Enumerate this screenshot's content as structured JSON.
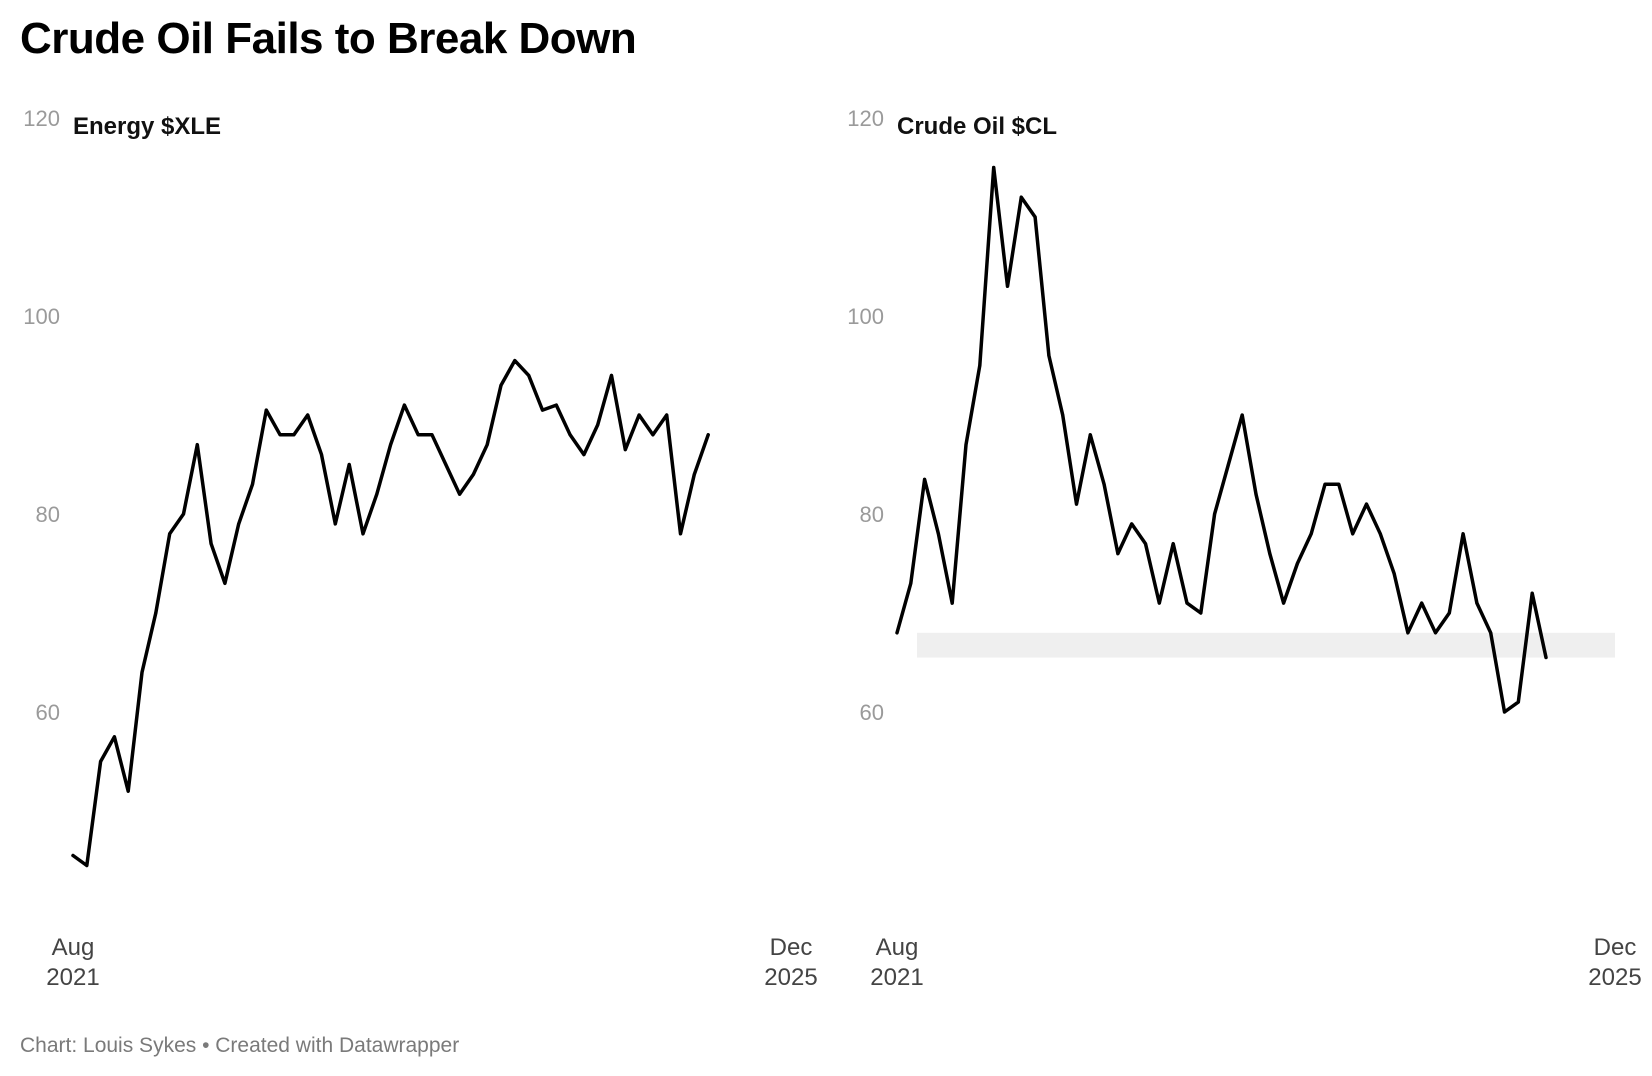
{
  "page": {
    "title": "Crude Oil Fails to Break Down",
    "footer": "Chart: Louis Sykes • Created with Datawrapper"
  },
  "colors": {
    "line": "#000000",
    "band": "#efefef",
    "tick_label": "#9a9a9a",
    "axis_label": "#444444"
  },
  "chart_data": [
    {
      "type": "line",
      "title": "Energy $XLE",
      "xlabel": "",
      "ylabel": "",
      "ylim": [
        40,
        125
      ],
      "y_ticks": [
        {
          "value": 120,
          "label": "120"
        },
        {
          "value": 100,
          "label": "100"
        },
        {
          "value": 80,
          "label": "80"
        },
        {
          "value": 60,
          "label": "60"
        }
      ],
      "x_range": [
        "2021-08",
        "2025-12"
      ],
      "x_ticks": [
        {
          "date": "2021-08",
          "month": "Aug",
          "year": "2021"
        },
        {
          "date": "2025-12",
          "month": "Dec",
          "year": "2025"
        }
      ],
      "grid": false,
      "legend": "none",
      "series": [
        {
          "x": [
            "2021-08",
            "2021-09",
            "2021-10",
            "2021-11",
            "2021-12",
            "2022-01",
            "2022-02",
            "2022-03",
            "2022-04",
            "2022-05",
            "2022-06",
            "2022-07",
            "2022-08",
            "2022-09",
            "2022-10",
            "2022-11",
            "2022-12",
            "2023-01",
            "2023-02",
            "2023-03",
            "2023-04",
            "2023-05",
            "2023-06",
            "2023-07",
            "2023-08",
            "2023-09",
            "2023-10",
            "2023-11",
            "2023-12",
            "2024-01",
            "2024-02",
            "2024-03",
            "2024-04",
            "2024-05",
            "2024-06",
            "2024-07",
            "2024-08",
            "2024-09",
            "2024-10",
            "2024-11",
            "2024-12",
            "2025-01",
            "2025-02",
            "2025-03",
            "2025-04",
            "2025-05",
            "2025-06"
          ],
          "values": [
            45.5,
            44.5,
            55.0,
            57.5,
            52.0,
            64.0,
            70.0,
            78.0,
            80.0,
            87.0,
            77.0,
            73.0,
            79.0,
            83.0,
            90.5,
            88.0,
            88.0,
            90.0,
            86.0,
            79.0,
            85.0,
            78.0,
            82.0,
            87.0,
            91.0,
            88.0,
            88.0,
            85.0,
            82.0,
            84.0,
            87.0,
            93.0,
            95.5,
            94.0,
            90.5,
            91.0,
            88.0,
            86.0,
            89.0,
            94.0,
            86.5,
            90.0,
            88.0,
            90.0,
            78.0,
            84.0,
            88.0
          ]
        }
      ]
    },
    {
      "type": "line",
      "title": "Crude Oil $CL",
      "xlabel": "",
      "ylabel": "",
      "ylim": [
        40,
        125
      ],
      "y_ticks": [
        {
          "value": 120,
          "label": "120"
        },
        {
          "value": 100,
          "label": "100"
        },
        {
          "value": 80,
          "label": "80"
        },
        {
          "value": 60,
          "label": "60"
        }
      ],
      "x_range": [
        "2021-08",
        "2025-12"
      ],
      "x_ticks": [
        {
          "date": "2021-08",
          "month": "Aug",
          "year": "2021"
        },
        {
          "date": "2025-12",
          "month": "Dec",
          "year": "2025"
        }
      ],
      "grid": false,
      "legend": "none",
      "band": {
        "y_low": 65.5,
        "y_high": 68.0
      },
      "series": [
        {
          "x": [
            "2021-08",
            "2021-09",
            "2021-10",
            "2021-11",
            "2021-12",
            "2022-01",
            "2022-02",
            "2022-03",
            "2022-04",
            "2022-05",
            "2022-06",
            "2022-07",
            "2022-08",
            "2022-09",
            "2022-10",
            "2022-11",
            "2022-12",
            "2023-01",
            "2023-02",
            "2023-03",
            "2023-04",
            "2023-05",
            "2023-06",
            "2023-07",
            "2023-08",
            "2023-09",
            "2023-10",
            "2023-11",
            "2023-12",
            "2024-01",
            "2024-02",
            "2024-03",
            "2024-04",
            "2024-05",
            "2024-06",
            "2024-07",
            "2024-08",
            "2024-09",
            "2024-10",
            "2024-11",
            "2024-12",
            "2025-01",
            "2025-02",
            "2025-03",
            "2025-04",
            "2025-05",
            "2025-06",
            "2025-07"
          ],
          "values": [
            68.0,
            73.0,
            83.5,
            78.0,
            71.0,
            87.0,
            95.0,
            115.0,
            103.0,
            112.0,
            110.0,
            96.0,
            90.0,
            81.0,
            88.0,
            83.0,
            76.0,
            79.0,
            77.0,
            71.0,
            77.0,
            71.0,
            70.0,
            80.0,
            85.0,
            90.0,
            82.0,
            76.0,
            71.0,
            75.0,
            78.0,
            83.0,
            83.0,
            78.0,
            81.0,
            78.0,
            74.0,
            68.0,
            71.0,
            68.0,
            70.0,
            78.0,
            71.0,
            68.0,
            60.0,
            61.0,
            72.0,
            65.5
          ]
        }
      ]
    }
  ]
}
